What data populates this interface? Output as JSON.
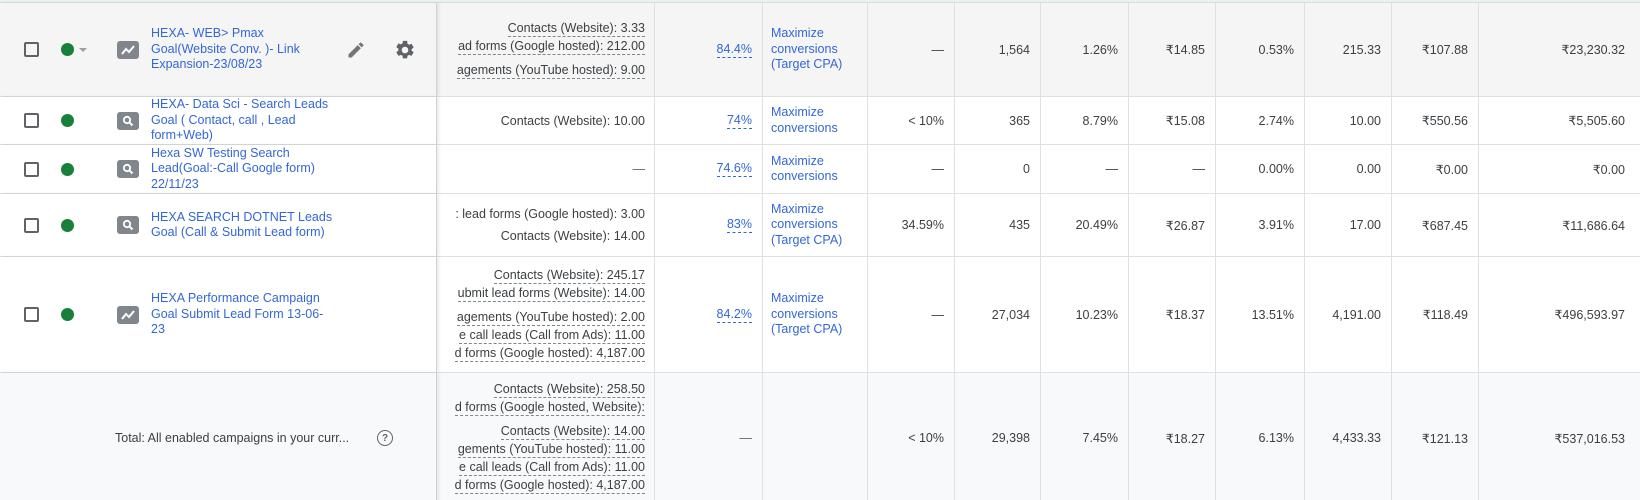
{
  "colors": {
    "link": "#3367d6",
    "status_enabled": "#188038",
    "row_hover_bg": "#f5f5f5",
    "total_bg": "#f8f9fa",
    "grid_line": "#e0e0e0"
  },
  "rows": [
    {
      "status": "enabled",
      "has_status_dropdown": true,
      "type_icon": "performance-max-icon",
      "name": "HEXA- WEB> Pmax Goal(Website Conv. )- Link Expansion-23/08/23",
      "conversions": [
        "Contacts (Website): 3.33",
        "ad forms (Google hosted): 212.00",
        "agements (YouTube hosted): 9.00"
      ],
      "optimization_score": "84.4%",
      "bid_strategy": "Maximize conversions (Target CPA)",
      "search_impr_share": "—",
      "clicks": "1,564",
      "ctr": "1.26%",
      "avg_cpc": "₹14.85",
      "conv_rate": "0.53%",
      "conversions_total": "215.33",
      "cost_per_conv": "₹107.88",
      "cost": "₹23,230.32"
    },
    {
      "status": "enabled",
      "type_icon": "search-campaign-icon",
      "name": "HEXA- Data Sci - Search Leads Goal ( Contact, call , Lead form+Web)",
      "conversions": [
        "Contacts (Website): 10.00"
      ],
      "optimization_score": "74%",
      "bid_strategy": "Maximize conversions",
      "search_impr_share": "< 10%",
      "clicks": "365",
      "ctr": "8.79%",
      "avg_cpc": "₹15.08",
      "conv_rate": "2.74%",
      "conversions_total": "10.00",
      "cost_per_conv": "₹550.56",
      "cost": "₹5,505.60"
    },
    {
      "status": "enabled",
      "type_icon": "search-campaign-icon",
      "name": "Hexa SW Testing Search Lead(Goal:-Call Google form) 22/11/23",
      "conversions": [
        "—"
      ],
      "optimization_score": "74.6%",
      "bid_strategy": "Maximize conversions",
      "search_impr_share": "—",
      "clicks": "0",
      "ctr": "—",
      "avg_cpc": "—",
      "conv_rate": "0.00%",
      "conversions_total": "0.00",
      "cost_per_conv": "₹0.00",
      "cost": "₹0.00"
    },
    {
      "status": "enabled",
      "type_icon": "search-campaign-icon",
      "name": "HEXA SEARCH DOTNET Leads Goal (Call & Submit Lead form)",
      "conversions": [
        ": lead forms (Google hosted): 3.00",
        "Contacts (Website): 14.00"
      ],
      "optimization_score": "83%",
      "bid_strategy": "Maximize conversions (Target CPA)",
      "search_impr_share": "34.59%",
      "clicks": "435",
      "ctr": "20.49%",
      "avg_cpc": "₹26.87",
      "conv_rate": "3.91%",
      "conversions_total": "17.00",
      "cost_per_conv": "₹687.45",
      "cost": "₹11,686.64"
    },
    {
      "status": "enabled",
      "type_icon": "performance-max-icon",
      "name": "HEXA Performance Campaign Goal Submit Lead Form 13-06-23",
      "conversions": [
        "Contacts (Website): 245.17",
        "ubmit lead forms (Website): 14.00",
        "agements (YouTube hosted): 2.00",
        "e call leads (Call from Ads): 11.00",
        "d forms (Google hosted): 4,187.00"
      ],
      "optimization_score": "84.2%",
      "bid_strategy": "Maximize conversions (Target CPA)",
      "search_impr_share": "—",
      "clicks": "27,034",
      "ctr": "10.23%",
      "avg_cpc": "₹18.37",
      "conv_rate": "13.51%",
      "conversions_total": "4,191.00",
      "cost_per_conv": "₹118.49",
      "cost": "₹496,593.97"
    }
  ],
  "total": {
    "label": "Total: All enabled campaigns in your curr...",
    "help_icon": "?",
    "conversions": [
      "Contacts (Website): 258.50",
      "d forms (Google hosted, Website):",
      "Contacts (Website): 14.00",
      "gements (YouTube hosted): 11.00",
      "e call leads (Call from Ads): 11.00",
      "d forms (Google hosted): 4,187.00"
    ],
    "optimization_score": "—",
    "bid_strategy": "",
    "search_impr_share": "< 10%",
    "clicks": "29,398",
    "ctr": "7.45%",
    "avg_cpc": "₹18.27",
    "conv_rate": "6.13%",
    "conversions_total": "4,433.33",
    "cost_per_conv": "₹121.13",
    "cost": "₹537,016.53"
  }
}
